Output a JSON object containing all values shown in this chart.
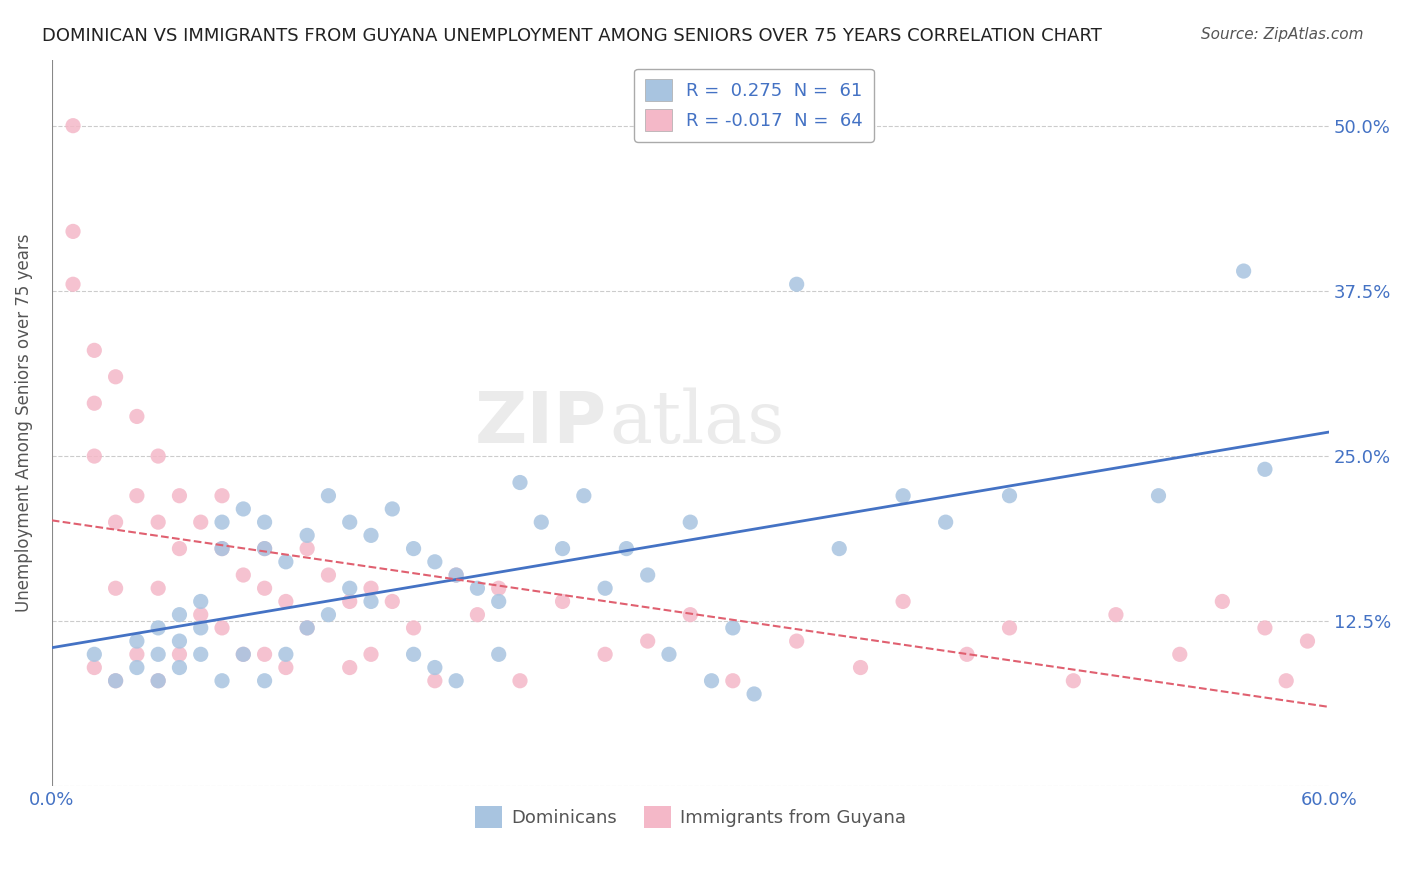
{
  "title": "DOMINICAN VS IMMIGRANTS FROM GUYANA UNEMPLOYMENT AMONG SENIORS OVER 75 YEARS CORRELATION CHART",
  "source": "Source: ZipAtlas.com",
  "xlabel": "",
  "ylabel": "Unemployment Among Seniors over 75 years",
  "xlim": [
    0.0,
    0.6
  ],
  "ylim": [
    0.0,
    0.55
  ],
  "xticks": [
    0.0,
    0.1,
    0.2,
    0.3,
    0.4,
    0.5,
    0.6
  ],
  "xticklabels": [
    "0.0%",
    "",
    "",
    "",
    "",
    "",
    "60.0%"
  ],
  "yticks": [
    0.0,
    0.125,
    0.25,
    0.375,
    0.5
  ],
  "yticklabels": [
    "",
    "12.5%",
    "25.0%",
    "37.5%",
    "50.0%"
  ],
  "dominican_R": 0.275,
  "dominican_N": 61,
  "guyana_R": -0.017,
  "guyana_N": 64,
  "dominican_color": "#a8c4e0",
  "guyana_color": "#f4b8c8",
  "dominican_line_color": "#4472c4",
  "guyana_line_color": "#e06070",
  "legend_dominicans": "Dominicans",
  "legend_guyana": "Immigrants from Guyana",
  "background_color": "#ffffff",
  "grid_color": "#cccccc",
  "dominican_x": [
    0.02,
    0.03,
    0.04,
    0.04,
    0.05,
    0.05,
    0.05,
    0.06,
    0.06,
    0.06,
    0.07,
    0.07,
    0.07,
    0.08,
    0.08,
    0.08,
    0.09,
    0.09,
    0.1,
    0.1,
    0.1,
    0.11,
    0.11,
    0.12,
    0.12,
    0.13,
    0.13,
    0.14,
    0.14,
    0.15,
    0.15,
    0.16,
    0.17,
    0.17,
    0.18,
    0.18,
    0.19,
    0.19,
    0.2,
    0.21,
    0.21,
    0.22,
    0.23,
    0.24,
    0.25,
    0.26,
    0.27,
    0.28,
    0.29,
    0.3,
    0.31,
    0.32,
    0.33,
    0.35,
    0.37,
    0.4,
    0.42,
    0.45,
    0.52,
    0.56,
    0.57
  ],
  "dominican_y": [
    0.1,
    0.08,
    0.11,
    0.09,
    0.12,
    0.1,
    0.08,
    0.13,
    0.11,
    0.09,
    0.14,
    0.12,
    0.1,
    0.2,
    0.18,
    0.08,
    0.21,
    0.1,
    0.2,
    0.18,
    0.08,
    0.17,
    0.1,
    0.19,
    0.12,
    0.22,
    0.13,
    0.2,
    0.15,
    0.19,
    0.14,
    0.21,
    0.18,
    0.1,
    0.17,
    0.09,
    0.16,
    0.08,
    0.15,
    0.14,
    0.1,
    0.23,
    0.2,
    0.18,
    0.22,
    0.15,
    0.18,
    0.16,
    0.1,
    0.2,
    0.08,
    0.12,
    0.07,
    0.38,
    0.18,
    0.22,
    0.2,
    0.22,
    0.22,
    0.39,
    0.24
  ],
  "guyana_x": [
    0.01,
    0.01,
    0.01,
    0.02,
    0.02,
    0.02,
    0.02,
    0.03,
    0.03,
    0.03,
    0.03,
    0.04,
    0.04,
    0.04,
    0.05,
    0.05,
    0.05,
    0.05,
    0.06,
    0.06,
    0.06,
    0.07,
    0.07,
    0.08,
    0.08,
    0.08,
    0.09,
    0.09,
    0.1,
    0.1,
    0.1,
    0.11,
    0.11,
    0.12,
    0.12,
    0.13,
    0.14,
    0.14,
    0.15,
    0.15,
    0.16,
    0.17,
    0.18,
    0.19,
    0.2,
    0.21,
    0.22,
    0.24,
    0.26,
    0.28,
    0.3,
    0.32,
    0.35,
    0.38,
    0.4,
    0.43,
    0.45,
    0.48,
    0.5,
    0.53,
    0.55,
    0.57,
    0.58,
    0.59
  ],
  "guyana_y": [
    0.5,
    0.42,
    0.38,
    0.33,
    0.29,
    0.25,
    0.09,
    0.31,
    0.2,
    0.15,
    0.08,
    0.28,
    0.22,
    0.1,
    0.25,
    0.2,
    0.15,
    0.08,
    0.22,
    0.18,
    0.1,
    0.2,
    0.13,
    0.22,
    0.18,
    0.12,
    0.16,
    0.1,
    0.18,
    0.15,
    0.1,
    0.14,
    0.09,
    0.18,
    0.12,
    0.16,
    0.14,
    0.09,
    0.15,
    0.1,
    0.14,
    0.12,
    0.08,
    0.16,
    0.13,
    0.15,
    0.08,
    0.14,
    0.1,
    0.11,
    0.13,
    0.08,
    0.11,
    0.09,
    0.14,
    0.1,
    0.12,
    0.08,
    0.13,
    0.1,
    0.14,
    0.12,
    0.08,
    0.11
  ]
}
